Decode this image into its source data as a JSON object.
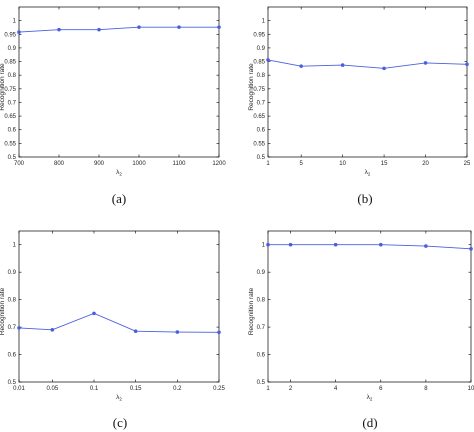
{
  "figure": {
    "panels": [
      {
        "caption": "(a)"
      },
      {
        "caption": "(b)"
      },
      {
        "caption": "(c)"
      },
      {
        "caption": "(d)"
      }
    ],
    "colors": {
      "series": "#4a5fe0",
      "axis": "#000000",
      "text": "#222222"
    }
  },
  "chart_data": [
    {
      "type": "line",
      "x_ticks": [
        "700",
        "800",
        "900",
        "1000",
        "1100",
        "1200"
      ],
      "x": [
        700,
        800,
        900,
        1000,
        1100,
        1200
      ],
      "xlim": [
        700,
        1200
      ],
      "y_ticks": [
        "0.5",
        "0.55",
        "0.6",
        "0.65",
        "0.7",
        "0.75",
        "0.8",
        "0.85",
        "0.9",
        "0.95",
        "1"
      ],
      "values": [
        0.958,
        0.967,
        0.967,
        0.976,
        0.976,
        0.976
      ],
      "ylim": [
        0.5,
        1.05
      ],
      "xlabel": "λ2",
      "ylabel": "Recognition rate",
      "grid": false
    },
    {
      "type": "line",
      "x_ticks": [
        "1",
        "5",
        "10",
        "15",
        "20",
        "25"
      ],
      "x": [
        1,
        5,
        10,
        15,
        20,
        25
      ],
      "xlim": [
        1,
        25
      ],
      "y_ticks": [
        "0.5",
        "0.55",
        "0.6",
        "0.65",
        "0.7",
        "0.75",
        "0.8",
        "0.85",
        "0.9",
        "0.95",
        "1"
      ],
      "values": [
        0.856,
        0.833,
        0.837,
        0.825,
        0.845,
        0.84
      ],
      "ylim": [
        0.5,
        1.05
      ],
      "xlabel": "λ2",
      "ylabel": "Recognition rate",
      "grid": false
    },
    {
      "type": "line",
      "x_ticks": [
        "0.01",
        "0.05",
        "0.1",
        "0.15",
        "0.2",
        "0.25"
      ],
      "x": [
        0.01,
        0.05,
        0.1,
        0.15,
        0.2,
        0.25
      ],
      "xlim": [
        0.01,
        0.25
      ],
      "y_ticks": [
        "0.5",
        "0.6",
        "0.7",
        "0.8",
        "0.9",
        "1"
      ],
      "values": [
        0.697,
        0.69,
        0.75,
        0.685,
        0.682,
        0.681
      ],
      "ylim": [
        0.5,
        1.05
      ],
      "xlabel": "λ2",
      "ylabel": "Recognition rate",
      "grid": false
    },
    {
      "type": "line",
      "x_ticks": [
        "1",
        "2",
        "4",
        "6",
        "8",
        "10"
      ],
      "x": [
        1,
        2,
        4,
        6,
        8,
        10
      ],
      "xlim": [
        1,
        10
      ],
      "y_ticks": [
        "0.5",
        "0.6",
        "0.7",
        "0.8",
        "0.9",
        "1"
      ],
      "values": [
        1.0,
        1.0,
        1.0,
        1.0,
        0.995,
        0.985
      ],
      "ylim": [
        0.5,
        1.05
      ],
      "xlabel": "λ2",
      "ylabel": "Recognition rate",
      "grid": false
    }
  ]
}
